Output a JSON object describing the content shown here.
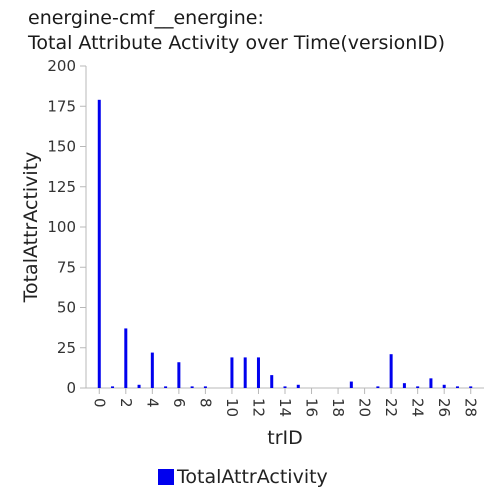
{
  "chart_data": {
    "type": "bar",
    "title_line1": "energine-cmf__energine:",
    "title_line2": "Total Attribute Activity over Time(versionID)",
    "xlabel": "trID",
    "ylabel": "TotalAttrActivity",
    "xlim": [
      -1,
      29
    ],
    "ylim": [
      0,
      200
    ],
    "x_ticks": [
      0,
      2,
      4,
      6,
      8,
      10,
      12,
      14,
      16,
      18,
      20,
      22,
      24,
      26,
      28
    ],
    "y_ticks": [
      0,
      25,
      50,
      75,
      100,
      125,
      150,
      175,
      200
    ],
    "grid": false,
    "legend_position": "bottom",
    "series": [
      {
        "name": "TotalAttrActivity",
        "color": "#0000ee",
        "x": [
          0,
          1,
          2,
          3,
          4,
          5,
          6,
          7,
          8,
          10,
          11,
          12,
          13,
          14,
          15,
          19,
          21,
          22,
          23,
          24,
          25,
          26,
          27,
          28
        ],
        "values": [
          179,
          1,
          37,
          2,
          22,
          1,
          16,
          1,
          1,
          19,
          19,
          19,
          8,
          1,
          2,
          4,
          1,
          21,
          3,
          1,
          6,
          2,
          1,
          1
        ]
      }
    ]
  }
}
